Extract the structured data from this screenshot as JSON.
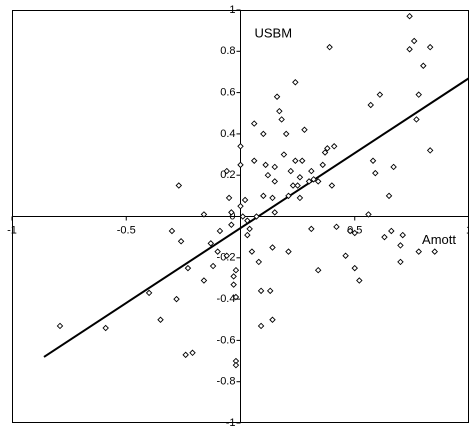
{
  "chart_data": {
    "type": "scatter",
    "xlabel": "Amott",
    "ylabel": "USBM",
    "xlim": [
      -1,
      1
    ],
    "ylim": [
      -1,
      1
    ],
    "xticks": [
      -1,
      -0.5,
      0.5,
      1
    ],
    "yticks": [
      -1,
      -0.8,
      -0.6,
      -0.4,
      -0.2,
      0,
      0.2,
      0.4,
      0.6,
      0.8,
      1
    ],
    "marker_color": "#000000",
    "line_color": "#000000",
    "x": [
      -0.79,
      -0.59,
      -0.4,
      -0.35,
      -0.28,
      -0.24,
      -0.21,
      -0.27,
      -0.3,
      -0.26,
      -0.23,
      -0.16,
      -0.16,
      -0.13,
      -0.12,
      -0.1,
      -0.09,
      -0.05,
      -0.06,
      -0.06,
      -0.04,
      -0.04,
      -0.03,
      -0.03,
      -0.02,
      -0.02,
      -0.02,
      -0.02,
      0,
      0,
      0.01,
      0,
      0.02,
      0.03,
      0.03,
      0.04,
      0.05,
      0.06,
      0.06,
      0.07,
      0.08,
      0.09,
      0.09,
      0.1,
      0.1,
      0.11,
      0.12,
      0.14,
      0.13,
      0.14,
      0.14,
      0.15,
      0.15,
      0.15,
      0.16,
      0.17,
      0.18,
      0.19,
      0.2,
      0.21,
      0.22,
      0.21,
      0.23,
      0.24,
      0.24,
      0.25,
      0.26,
      0.26,
      0.27,
      0.28,
      0.31,
      0.3,
      0.31,
      0.32,
      0.34,
      0.34,
      0.36,
      0.37,
      0.38,
      0.39,
      0.4,
      0.41,
      0.42,
      0.46,
      0.48,
      0.5,
      0.5,
      0.52,
      0.56,
      0.57,
      0.58,
      0.59,
      0.61,
      0.63,
      0.65,
      0.66,
      0.67,
      0.7,
      0.7,
      0.71,
      0.74,
      0.74,
      0.76,
      0.78,
      0.77,
      0.78,
      0.8,
      0.83,
      0.83,
      0.85
    ],
    "y": [
      -0.53,
      -0.54,
      -0.37,
      -0.5,
      -0.4,
      -0.67,
      -0.66,
      0.15,
      -0.07,
      -0.12,
      -0.25,
      0.01,
      -0.31,
      -0.13,
      -0.24,
      -0.17,
      -0.07,
      0.09,
      -0.19,
      0.22,
      0.02,
      -0.04,
      -0.33,
      -0.29,
      -0.39,
      -0.26,
      -0.7,
      -0.72,
      0.34,
      0.25,
      0,
      0.05,
      0.08,
      -0.09,
      -0.02,
      -0.06,
      -0.17,
      0.27,
      0.45,
      0,
      -0.22,
      -0.36,
      -0.53,
      0.1,
      0.4,
      0.25,
      0.2,
      -0.15,
      -0.36,
      -0.5,
      0.09,
      0.02,
      0.17,
      0.24,
      0.58,
      0.51,
      0.47,
      0.3,
      0.4,
      0.1,
      0.22,
      -0.17,
      0.15,
      0.27,
      0.65,
      0.15,
      0.09,
      0.19,
      0.27,
      0.42,
      0.22,
      0.17,
      -0.06,
      0.18,
      0.17,
      -0.26,
      0.25,
      0.31,
      0.33,
      0.82,
      0.15,
      0.34,
      -0.05,
      -0.19,
      -0.07,
      -0.08,
      -0.25,
      -0.31,
      0.01,
      0.54,
      0.27,
      0.21,
      0.59,
      -0.1,
      0.1,
      -0.07,
      0.24,
      -0.14,
      -0.22,
      -0.09,
      0.81,
      0.97,
      0.85,
      0.59,
      0.47,
      -0.17,
      0.73,
      0.82,
      0.32,
      -0.17
    ],
    "trendline": {
      "x": [
        -0.86,
        1
      ],
      "y": [
        -0.68,
        0.67
      ]
    }
  }
}
